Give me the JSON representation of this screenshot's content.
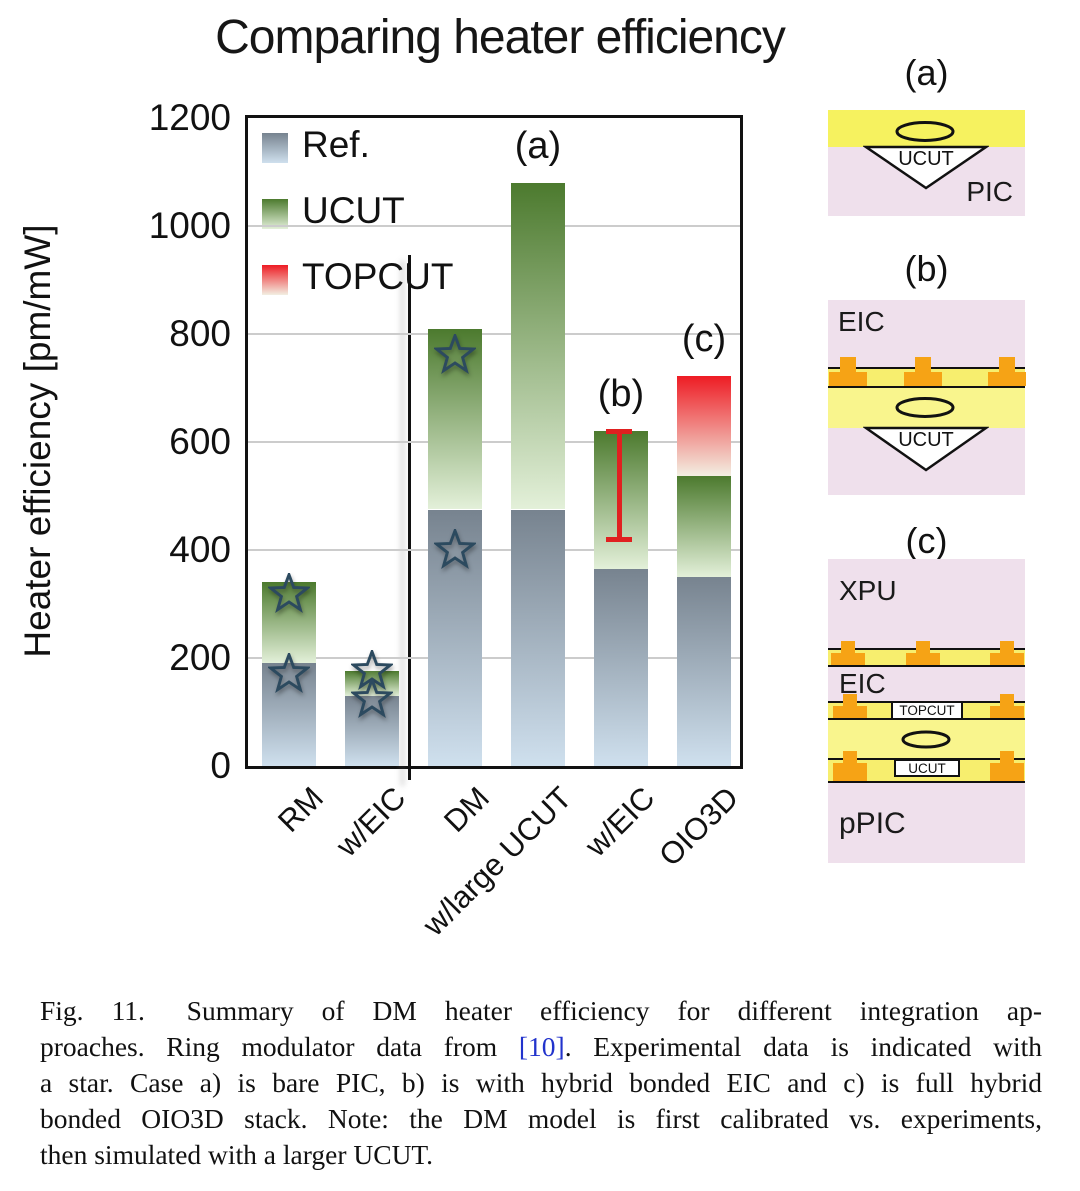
{
  "chart_data": {
    "type": "bar",
    "subtype": "stacked-bar-with-markers",
    "title": "Comparing heater efficiency",
    "ylabel": "Heater efficiency [pm/mW]",
    "ylim": [
      0,
      1200
    ],
    "yticks": [
      0,
      200,
      400,
      600,
      800,
      1000,
      1200
    ],
    "grid": true,
    "legend_position": "top-left-inside",
    "legend": [
      "Ref.",
      "UCUT",
      "TOPCUT"
    ],
    "categories": [
      "RM",
      "w/EIC",
      "DM",
      "w/large UCUT",
      "w/EIC",
      "OIO3D"
    ],
    "series": [
      {
        "name": "Ref.",
        "values": [
          190,
          130,
          475,
          475,
          365,
          350
        ]
      },
      {
        "name": "UCUT",
        "values": [
          150,
          46,
          335,
          605,
          255,
          187
        ]
      },
      {
        "name": "TOPCUT",
        "values": [
          0,
          0,
          0,
          0,
          0,
          185
        ]
      }
    ],
    "bars": [
      {
        "label": "RM",
        "ref": 190,
        "ucut": 340,
        "stars": [
          318,
          170
        ]
      },
      {
        "label": "w/EIC",
        "ref": 130,
        "ucut": 176,
        "stars": [
          176,
          125
        ]
      },
      {
        "label": "DM",
        "ref": 475,
        "ucut": 810,
        "stars": [
          762,
          400
        ]
      },
      {
        "label": "w/large UCUT",
        "ref": 475,
        "ucut": 1080,
        "annotation": "(a)"
      },
      {
        "label": "w/EIC",
        "ref": 365,
        "ucut": 620,
        "annotation": "(b)",
        "error_bar": {
          "low": 420,
          "high": 620
        }
      },
      {
        "label": "OIO3D",
        "ref": 350,
        "ucut": 537,
        "topcut": 722,
        "annotation": "(c)"
      }
    ],
    "marker_meaning": "star = experimental data",
    "group_divider_after_category": "w/EIC",
    "colors": {
      "ref_top": "#77838f",
      "ref_bottom": "#cfe0ee",
      "ucut_top": "#4c7a2e",
      "ucut_bottom": "#e3f0d9",
      "topcut_top": "#ee1c24",
      "topcut_bottom": "#f2efe2",
      "error_bar": "#e02020",
      "star_outline": "#2c4a5f",
      "gridline": "#cccccc"
    }
  },
  "diagrams": {
    "a": {
      "label": "(a)",
      "ucut": "UCUT",
      "pic": "PIC"
    },
    "b": {
      "label": "(b)",
      "eic": "EIC",
      "ucut": "UCUT"
    },
    "c": {
      "label": "(c)",
      "xpu": "XPU",
      "eic": "EIC",
      "topcut": "TOPCUT",
      "ucut": "UCUT",
      "ppic": "pPIC"
    },
    "colors": {
      "pink": "#efe0ec",
      "yellow_bright": "#f6f25f",
      "yellow_ring": "#f9f58d",
      "band_yellow": "#f7ee6e",
      "pad_orange": "#f6a315"
    }
  },
  "caption": {
    "lines": [
      "Fig. 11.  Summary of DM heater efficiency for different integration ap-",
      "proaches. Ring modulator data from [10]. Experimental data is indicated with",
      "a star. Case a) is bare PIC, b) is with hybrid bonded EIC and c) is full hybrid",
      "bonded OIO3D stack. Note: the DM model is first calibrated vs. experiments,",
      "then simulated with a larger UCUT."
    ],
    "link_text": "[10]",
    "link_color": "#2233cc"
  }
}
